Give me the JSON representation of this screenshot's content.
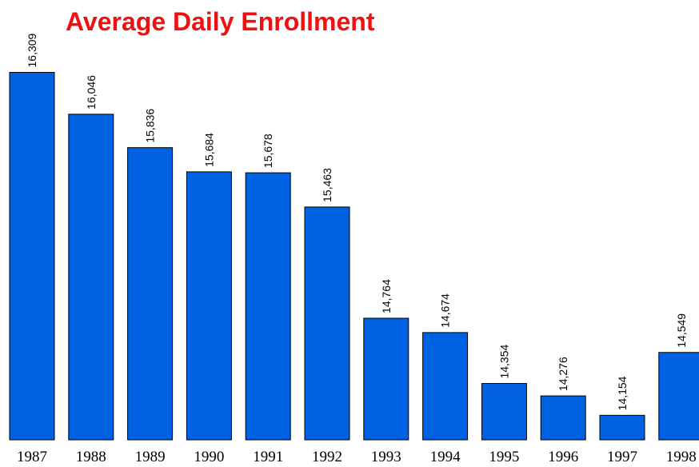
{
  "chart_data": {
    "type": "bar",
    "title": "Average Daily Enrollment",
    "categories": [
      "1987",
      "1988",
      "1989",
      "1990",
      "1991",
      "1992",
      "1993",
      "1994",
      "1995",
      "1996",
      "1997",
      "1998"
    ],
    "values": [
      16309,
      16046,
      15836,
      15684,
      15678,
      15463,
      14764,
      14674,
      14354,
      14276,
      14154,
      14549
    ],
    "value_labels": [
      "16,309",
      "16,046",
      "15,836",
      "15,684",
      "15,678",
      "15,463",
      "14,764",
      "14,674",
      "14,354",
      "14,276",
      "14,154",
      "14,549"
    ],
    "color": "#0062e3",
    "ylim": [
      14000,
      16500
    ]
  }
}
